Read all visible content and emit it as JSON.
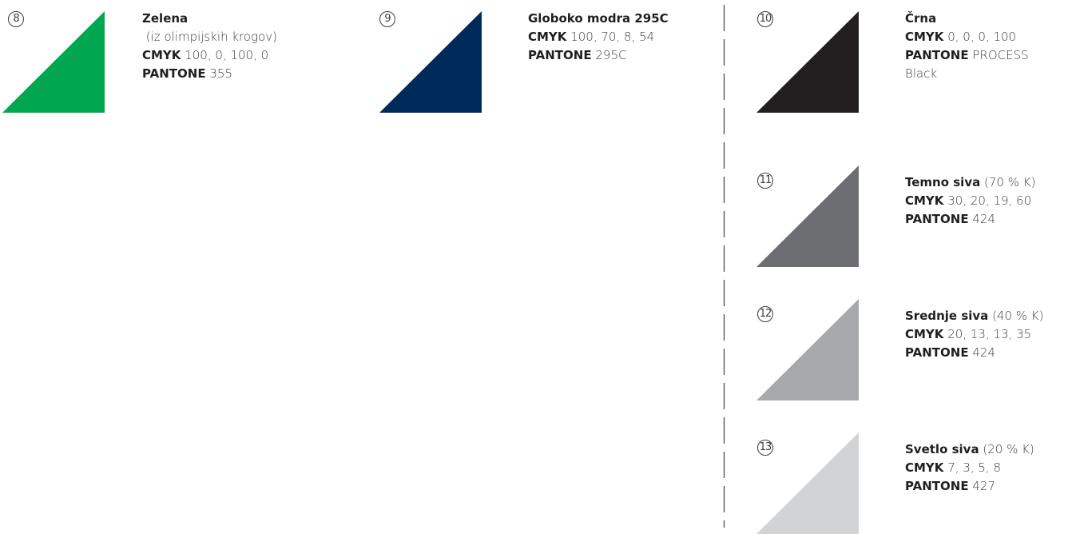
{
  "swatches": [
    {
      "number": "8",
      "color": "#00a650",
      "name": "Zelena",
      "note": "(iz olimpijskih krogov)",
      "cmyk_label": "CMYK",
      "cmyk": "100, 0, 100, 0",
      "pantone_label": "PANTONE",
      "pantone": "355"
    },
    {
      "number": "9",
      "color": "#012a5c",
      "name": "Globoko modra 295C",
      "cmyk_label": "CMYK",
      "cmyk": "100, 70, 8, 54",
      "pantone_label": "PANTONE",
      "pantone": "295C"
    },
    {
      "number": "10",
      "color": "#231f20",
      "name": "Črna",
      "cmyk_label": "CMYK",
      "cmyk": "0, 0, 0, 100",
      "pantone_label": "PANTONE",
      "pantone": "PROCESS",
      "pantone_line2": "Black"
    },
    {
      "number": "11",
      "color": "#6d6e71",
      "name": "Temno siva",
      "suffix": "(70 % K)",
      "cmyk_label": "CMYK",
      "cmyk": "30, 20, 19, 60",
      "pantone_label": "PANTONE",
      "pantone": "424"
    },
    {
      "number": "12",
      "color": "#a7a9ac",
      "name": "Srednje siva",
      "suffix": "(40 % K)",
      "cmyk_label": "CMYK",
      "cmyk": "20, 13, 13, 35",
      "pantone_label": "PANTONE",
      "pantone": "424"
    },
    {
      "number": "13",
      "color": "#d1d3d4",
      "name": "Svetlo siva",
      "suffix": "(20 % K)",
      "cmyk_label": "CMYK",
      "cmyk": "7, 3, 5, 8",
      "pantone_label": "PANTONE",
      "pantone": "427"
    }
  ],
  "divider_color": "#3c3c3c"
}
